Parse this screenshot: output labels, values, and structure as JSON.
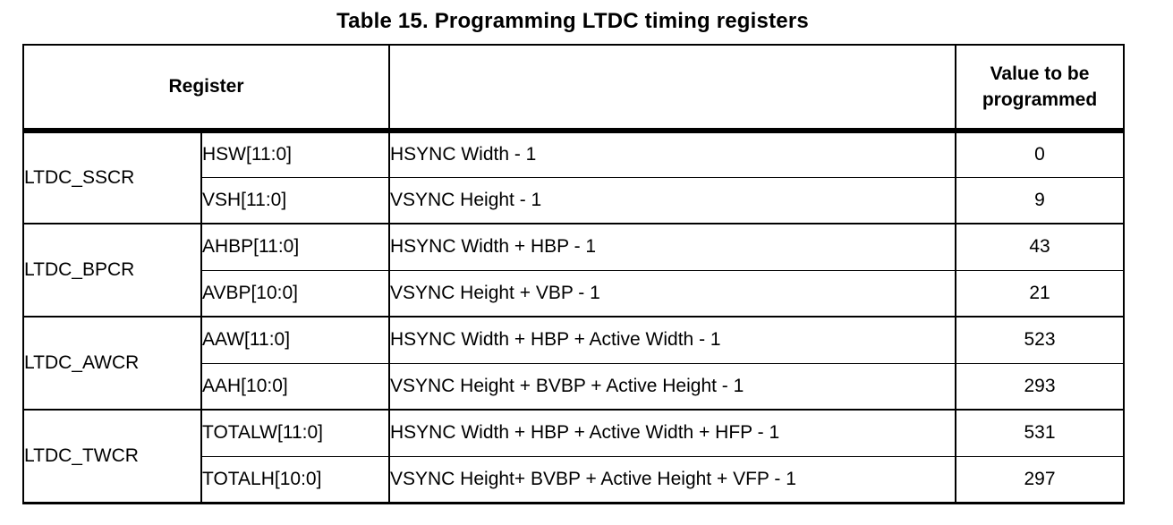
{
  "title": "Table 15. Programming LTDC timing registers",
  "table": {
    "header": {
      "register": "Register",
      "description": "",
      "value": "Value to be programmed"
    },
    "groups": [
      {
        "register": "LTDC_SSCR",
        "rows": [
          {
            "field": "HSW[11:0]",
            "description": "HSYNC Width - 1",
            "value": "0"
          },
          {
            "field": "VSH[11:0]",
            "description": "VSYNC Height - 1",
            "value": "9"
          }
        ]
      },
      {
        "register": "LTDC_BPCR",
        "rows": [
          {
            "field": "AHBP[11:0]",
            "description": "HSYNC Width + HBP - 1",
            "value": "43"
          },
          {
            "field": "AVBP[10:0]",
            "description": "VSYNC Height + VBP - 1",
            "value": "21"
          }
        ]
      },
      {
        "register": "LTDC_AWCR",
        "rows": [
          {
            "field": "AAW[11:0]",
            "description": "HSYNC Width + HBP + Active Width - 1",
            "value": "523"
          },
          {
            "field": "AAH[10:0]",
            "description": "VSYNC Height + BVBP + Active Height - 1",
            "value": "293"
          }
        ]
      },
      {
        "register": "LTDC_TWCR",
        "rows": [
          {
            "field": "TOTALW[11:0]",
            "description": "HSYNC Width + HBP + Active Width + HFP - 1",
            "value": "531"
          },
          {
            "field": "TOTALH[10:0]",
            "description": "VSYNC Height+ BVBP + Active Height + VFP - 1",
            "value": "297"
          }
        ]
      }
    ]
  },
  "colors": {
    "text": "#000000",
    "border": "#000000",
    "background": "#ffffff"
  }
}
